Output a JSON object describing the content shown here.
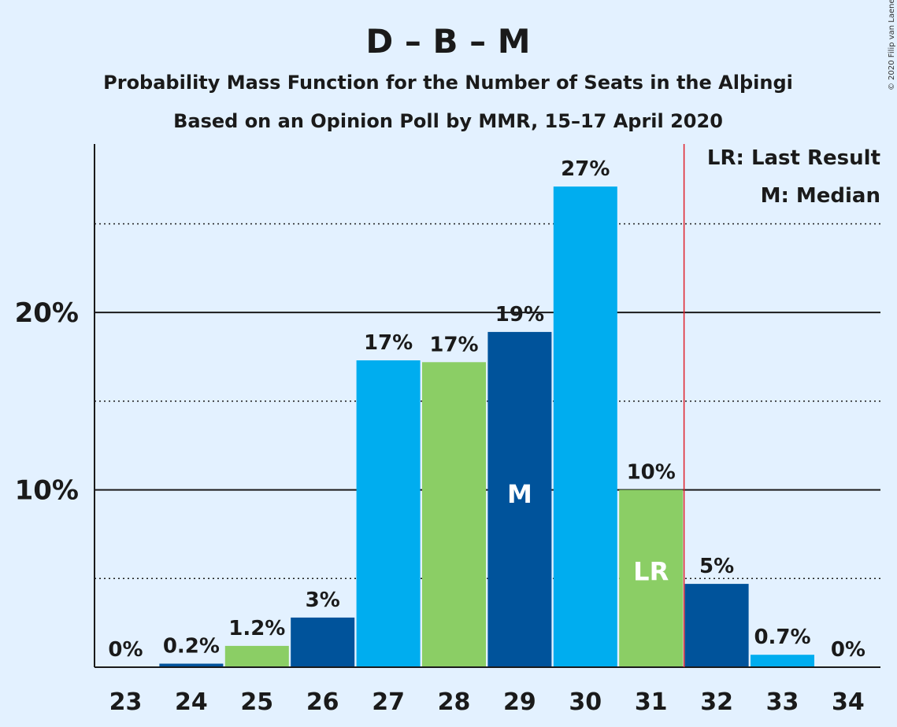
{
  "chart_data": {
    "type": "bar",
    "title": "D – B – M",
    "subtitle_line1": "Probability Mass Function for the Number of Seats in the Alþingi",
    "subtitle_line2": "Based on an Opinion Poll by MMR, 15–17 April 2020",
    "copyright": "© 2020 Filip van Laenen",
    "categories": [
      "23",
      "24",
      "25",
      "26",
      "27",
      "28",
      "29",
      "30",
      "31",
      "32",
      "33",
      "34"
    ],
    "values": [
      0,
      0.2,
      1.2,
      2.8,
      17.3,
      17.2,
      18.9,
      27.1,
      10.0,
      4.7,
      0.7,
      0
    ],
    "value_labels": [
      "0%",
      "0.2%",
      "1.2%",
      "3%",
      "17%",
      "17%",
      "19%",
      "27%",
      "10%",
      "5%",
      "0.7%",
      "0%"
    ],
    "bar_colors": [
      "#00adef",
      "#00539b",
      "#8bce65",
      "#00539b",
      "#00adef",
      "#8bce65",
      "#00539b",
      "#00adef",
      "#8bce65",
      "#00539b",
      "#00adef",
      "#00adef"
    ],
    "yticks": [
      {
        "value": 10,
        "label": "10%"
      },
      {
        "value": 20,
        "label": "20%"
      }
    ],
    "minor_gridlines": [
      5,
      15,
      25
    ],
    "ylim": [
      0,
      29.5
    ],
    "median_category": "29",
    "median_marker": "M",
    "last_result_category": "31",
    "last_result_marker": "LR",
    "legend": [
      "LR: Last Result",
      "M: Median"
    ],
    "legend_position": "top-right",
    "colors": {
      "background": "#e3f1ff",
      "light_blue": "#00adef",
      "dark_blue": "#00539b",
      "green": "#8bce65",
      "last_result_line": "#e0202a"
    }
  }
}
